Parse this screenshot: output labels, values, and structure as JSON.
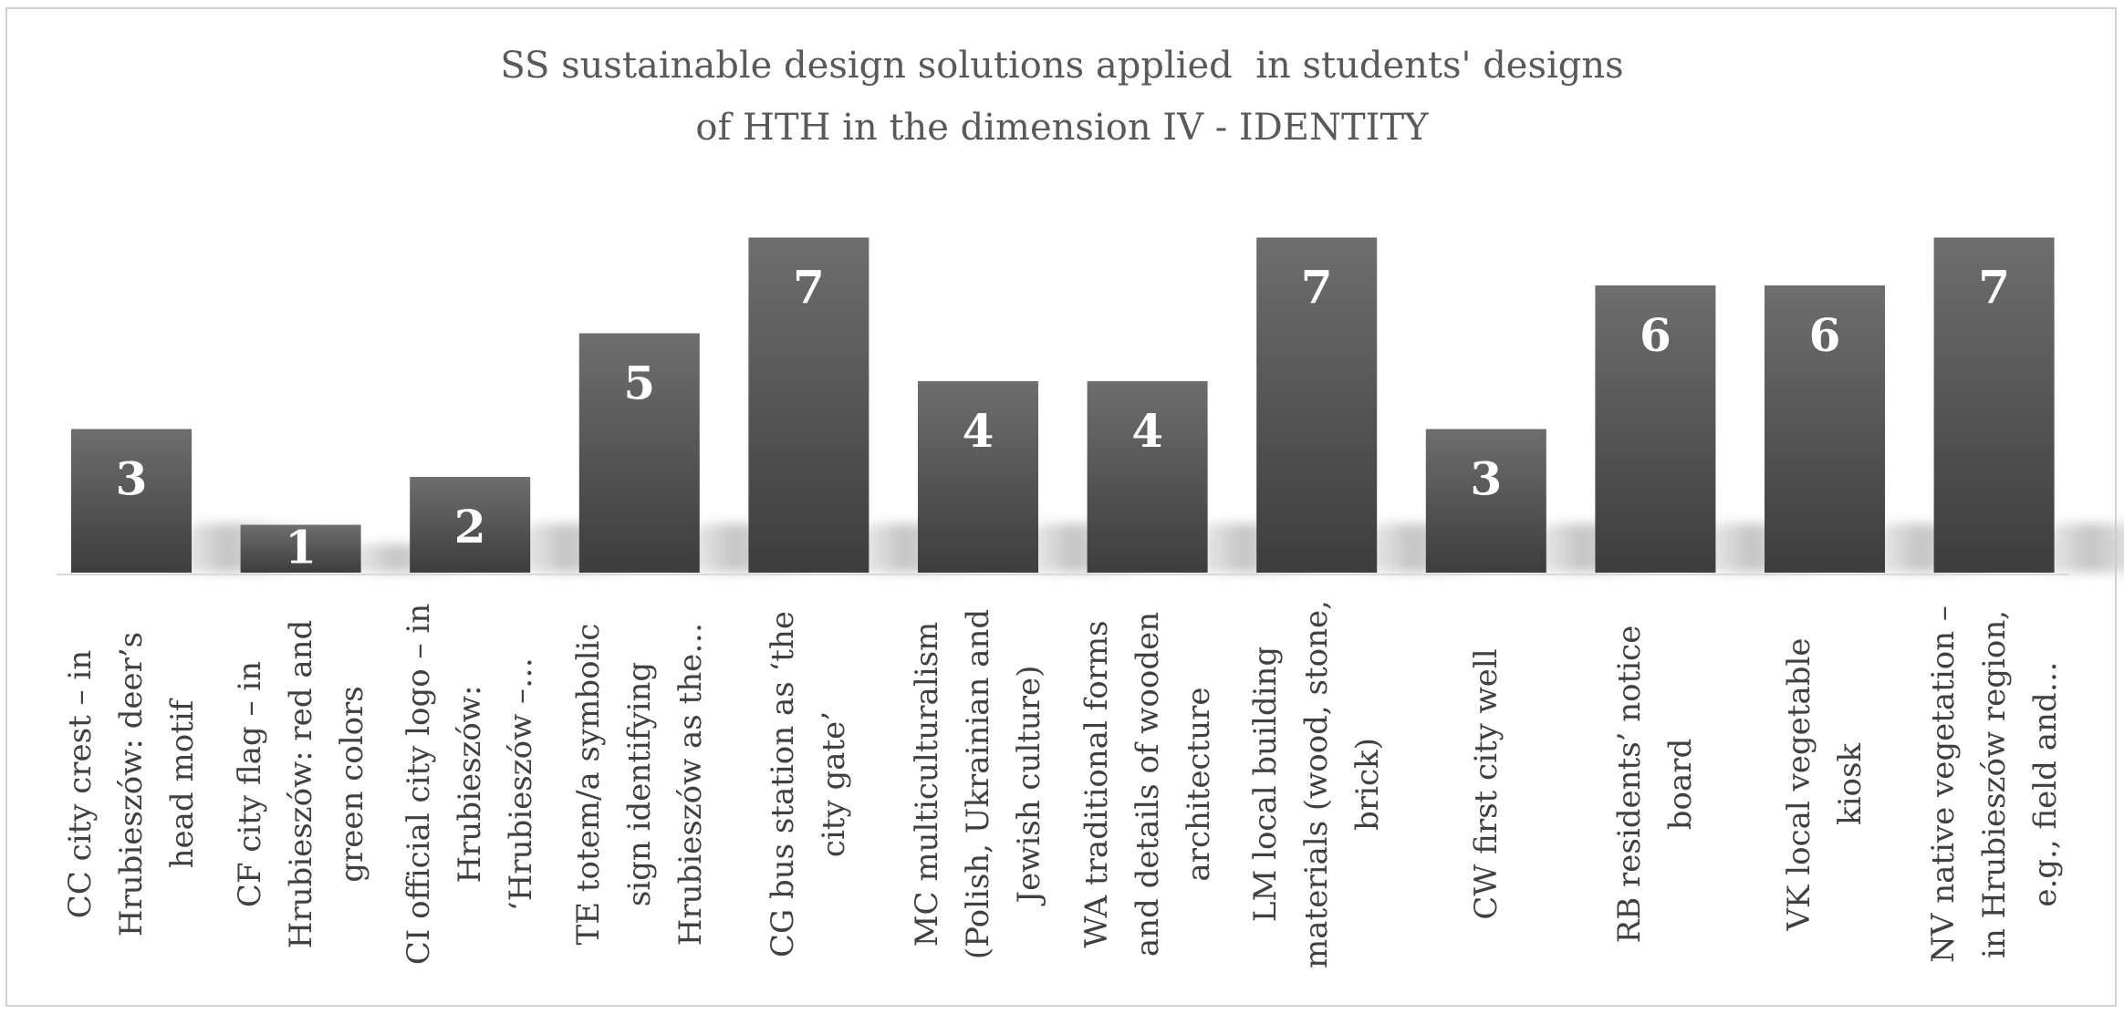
{
  "chart_data": {
    "type": "bar",
    "title_lines": [
      "SS sustainable design solutions applied  in students' designs",
      "of HTH in the dimension IV - IDENTITY"
    ],
    "categories": [
      [
        "CC city crest – in",
        "Hrubieszów: deer’s",
        "head motif"
      ],
      [
        "CF city flag – in",
        "Hrubieszów: red and",
        "green colors"
      ],
      [
        "CI official city logo – in",
        "Hrubieszów:",
        "‘Hrubieszów –…"
      ],
      [
        "TE totem/a symbolic",
        "sign identifying",
        "Hrubieszów as the…"
      ],
      [
        "CG bus station as ‘the",
        "city gate’"
      ],
      [
        "MC multiculturalism",
        "(Polish, Ukrainian and",
        "Jewish culture)"
      ],
      [
        "WA traditional forms",
        "and details of wooden",
        "architecture"
      ],
      [
        "LM local building",
        "materials (wood, stone,",
        "brick)"
      ],
      [
        "CW first city well"
      ],
      [
        "RB residents’ notice",
        "board"
      ],
      [
        "VK local vegetable",
        "kiosk"
      ],
      [
        "NV native vegetation –",
        "in Hrubieszów region,",
        "e.g., field and…"
      ]
    ],
    "values": [
      3,
      1,
      2,
      5,
      7,
      4,
      4,
      7,
      3,
      6,
      6,
      7
    ],
    "ylim": [
      0,
      7
    ],
    "grid": false,
    "legend": "none",
    "colors": {
      "bar_top": "#6e6e6e",
      "bar_bottom": "#3d3d3d",
      "label": "#ffffff",
      "shadow": "#bdbdbd"
    }
  }
}
